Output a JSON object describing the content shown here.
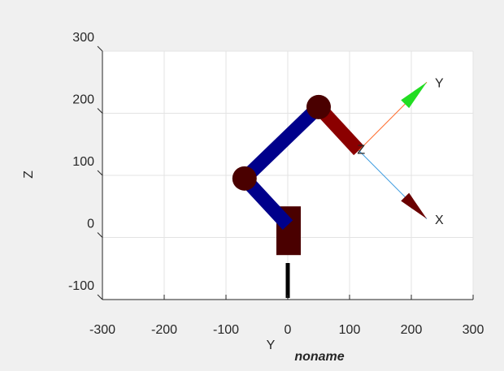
{
  "chart_data": {
    "type": "robot",
    "title": "noname",
    "xlabel": "Y",
    "ylabel": "Z",
    "xlim": [
      -300,
      300
    ],
    "xticks": [
      -300,
      -200,
      -100,
      0,
      100,
      200,
      300
    ],
    "ylim": [
      -100,
      300
    ],
    "yticks": [
      -100,
      0,
      100,
      200,
      300
    ],
    "grid": true,
    "joints": {
      "x": [
        0,
        -70,
        50,
        115
      ],
      "y": [
        20,
        95,
        210,
        140
      ]
    },
    "link_colors": [
      "#00008b",
      "#00008b",
      "#8b0000"
    ],
    "frame": {
      "origin": [
        115,
        140
      ],
      "x_tip": [
        225,
        30
      ],
      "y_tip": [
        225,
        250
      ],
      "x_label": "X",
      "y_label": "Y",
      "z_label": "Z",
      "color": "#1f1fff"
    }
  }
}
